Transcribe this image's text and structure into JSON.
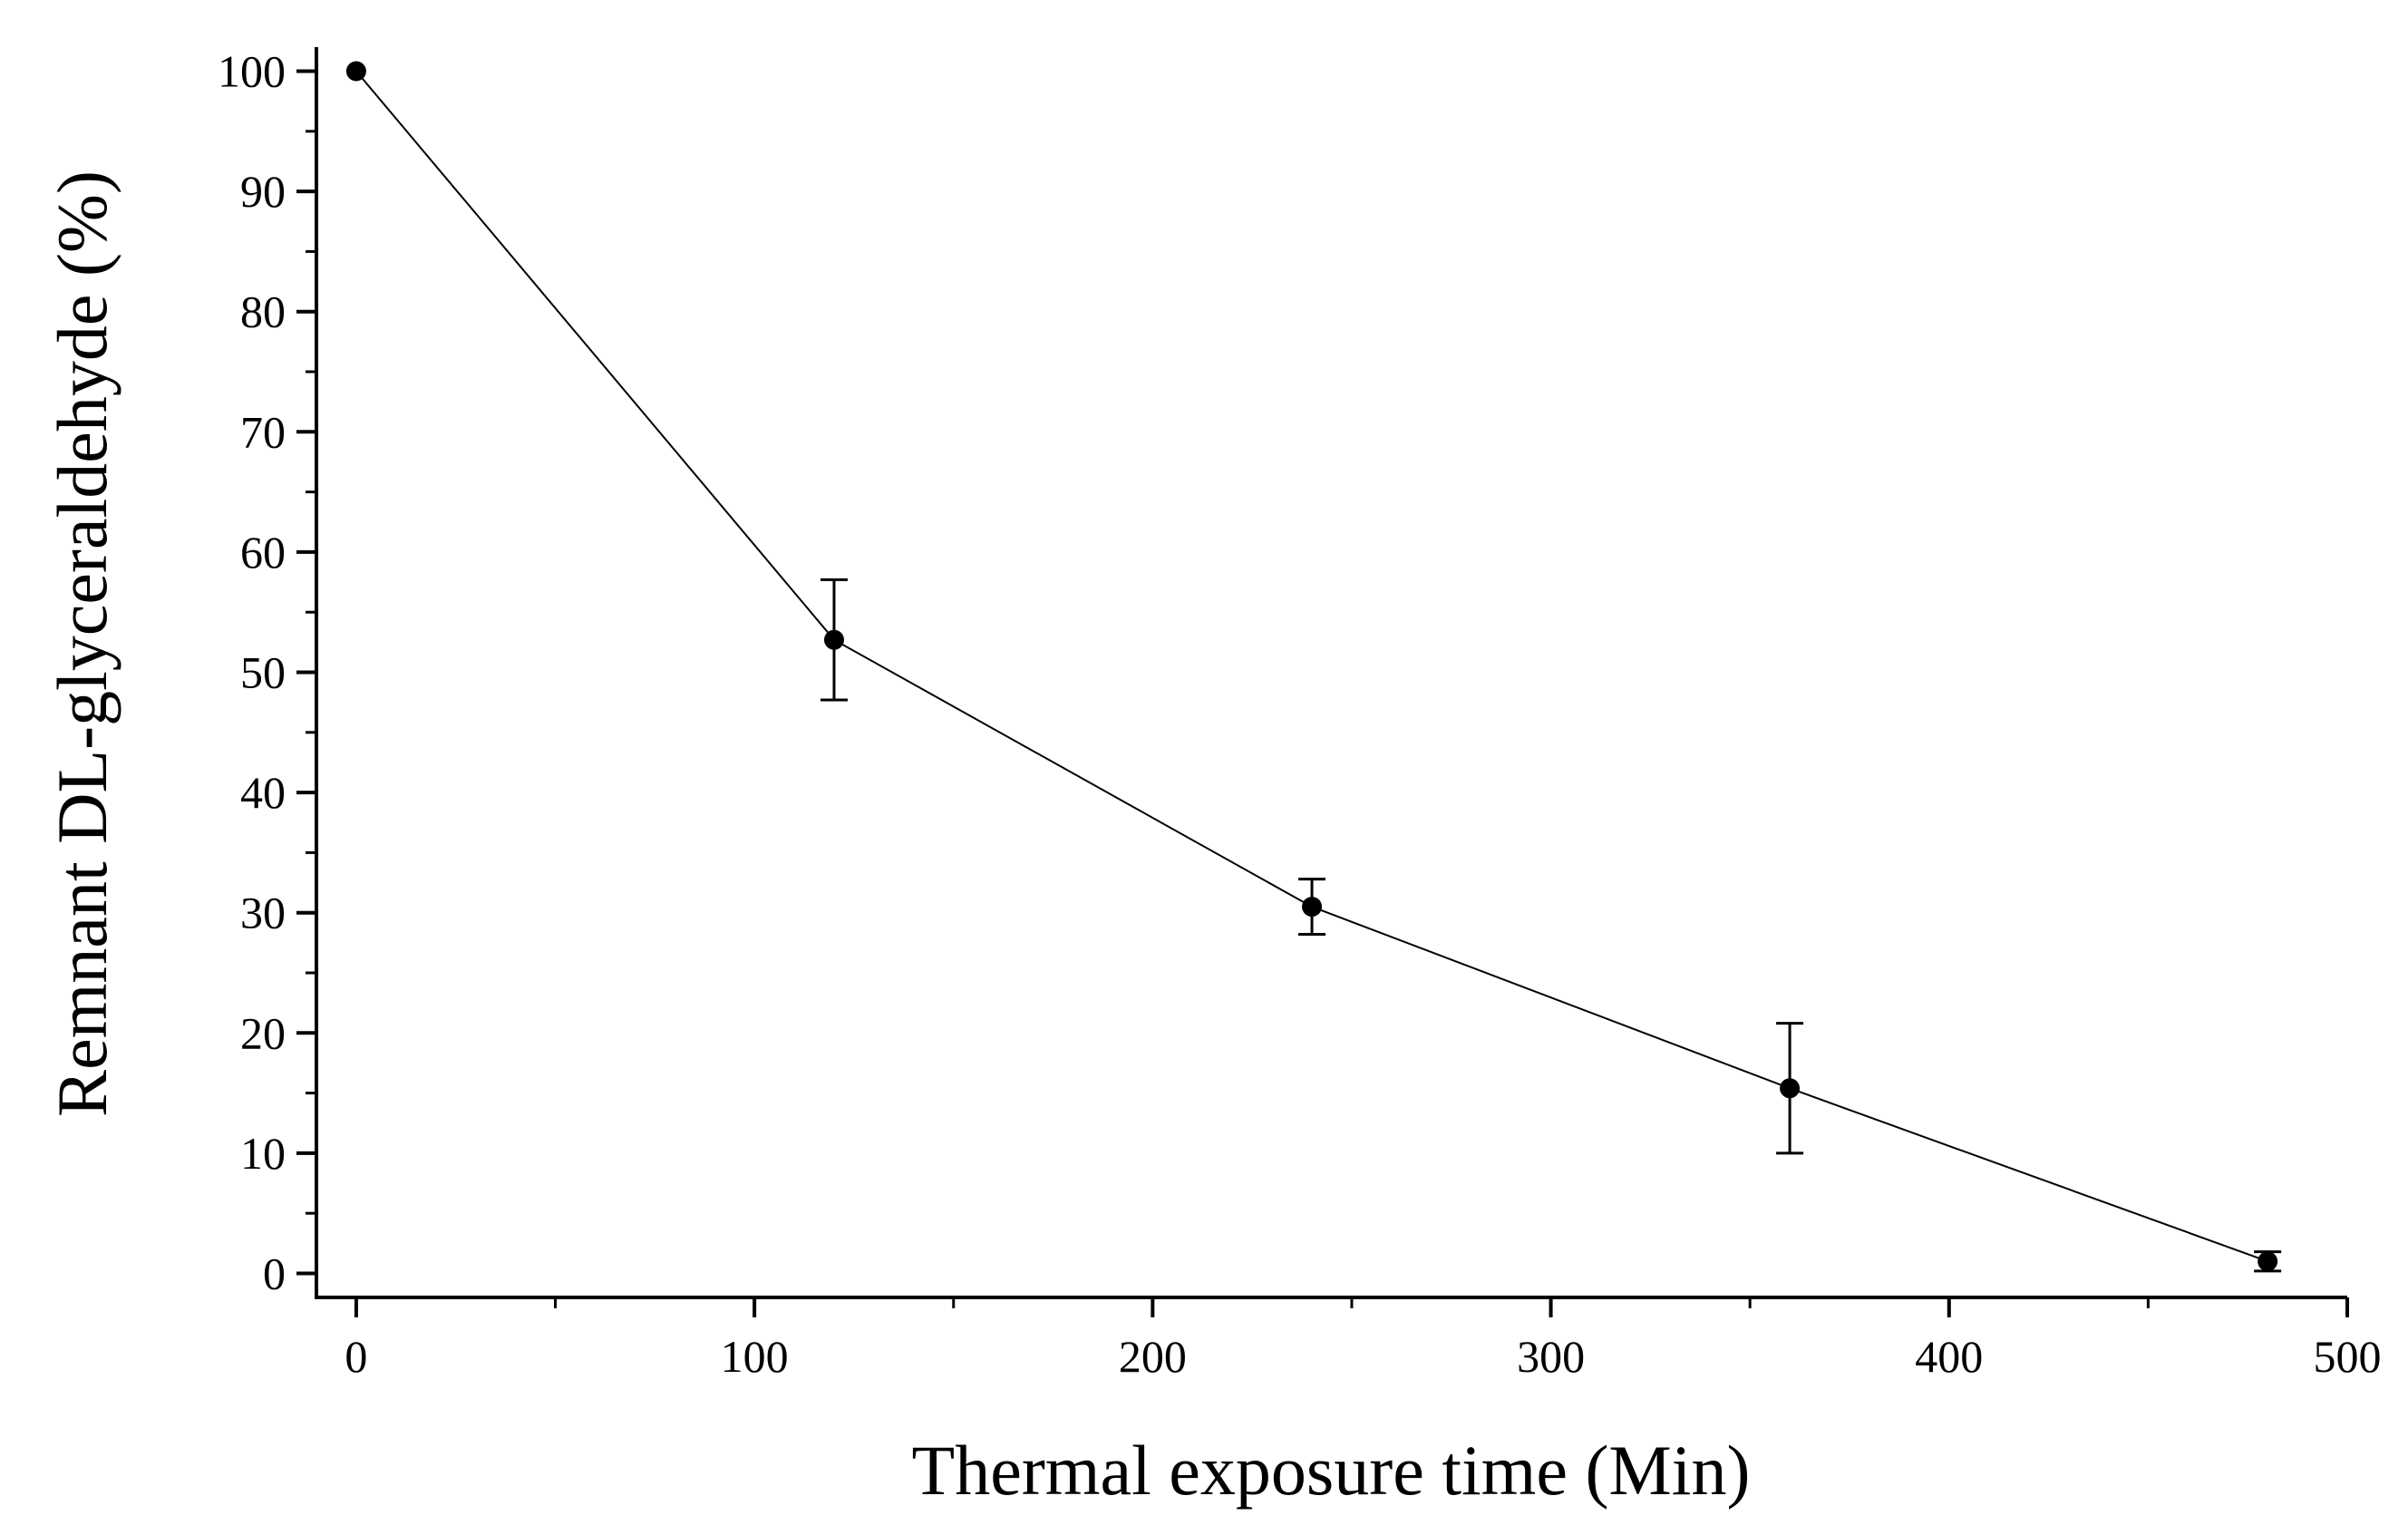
{
  "chart_data": {
    "type": "line",
    "title": "",
    "xlabel": "Thermal exposure time (Min)",
    "ylabel": "Remnant DL-glyceraldehyde (%)",
    "xlim": [
      -10,
      500
    ],
    "ylim": [
      -2,
      102
    ],
    "xticks": [
      0,
      100,
      200,
      300,
      400,
      500
    ],
    "yticks": [
      0,
      10,
      20,
      30,
      40,
      50,
      60,
      70,
      80,
      90,
      100
    ],
    "x_minor_step": 50,
    "y_minor_step": 5,
    "grid": false,
    "legend": "none",
    "series": [
      {
        "name": "Remnant DL-glyceraldehyde",
        "x": [
          0,
          120,
          240,
          360,
          480
        ],
        "y": [
          100,
          52.7,
          30.5,
          15.4,
          1.0
        ],
        "error": [
          0,
          5.0,
          2.3,
          5.4,
          0.8
        ],
        "color": "#000000"
      }
    ]
  }
}
